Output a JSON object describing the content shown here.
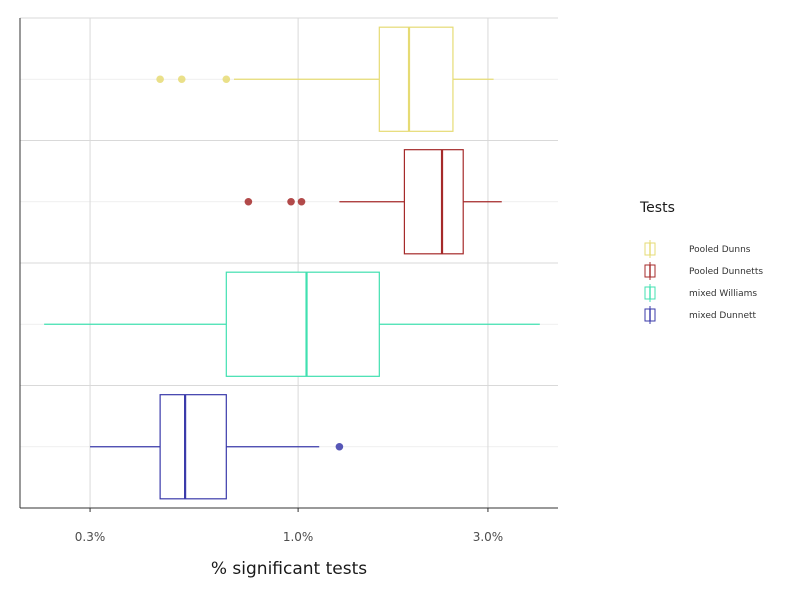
{
  "chart_data": {
    "type": "boxplot",
    "orientation": "horizontal",
    "xlabel": "% significant tests",
    "x_scale": "log",
    "xlim": [
      0.2,
      4.5
    ],
    "x_ticks": [
      {
        "value": 0.3,
        "label": "0.3%"
      },
      {
        "value": 1.0,
        "label": "1.0%"
      },
      {
        "value": 3.0,
        "label": "3.0%"
      }
    ],
    "grid": true,
    "legend": {
      "title": "Tests",
      "position": "right"
    },
    "series": [
      {
        "name": "Pooled Dunns",
        "color": "#e6db74",
        "whisker_low": 0.69,
        "q1": 1.6,
        "median": 1.9,
        "q3": 2.45,
        "whisker_high": 3.1,
        "outliers": [
          0.45,
          0.51,
          0.66
        ]
      },
      {
        "name": "Pooled Dunnetts",
        "color": "#a52a2a",
        "whisker_low": 1.27,
        "q1": 1.85,
        "median": 2.3,
        "q3": 2.6,
        "whisker_high": 3.25,
        "outliers": [
          0.75,
          0.96,
          1.02
        ]
      },
      {
        "name": "mixed Williams",
        "color": "#40e0b0",
        "whisker_low": 0.23,
        "q1": 0.66,
        "median": 1.05,
        "q3": 1.6,
        "whisker_high": 4.05,
        "outliers": []
      },
      {
        "name": "mixed Dunnett",
        "color": "#3a3aaa",
        "whisker_low": 0.3,
        "q1": 0.45,
        "median": 0.52,
        "q3": 0.66,
        "whisker_high": 1.13,
        "outliers": [
          1.27
        ]
      }
    ]
  }
}
